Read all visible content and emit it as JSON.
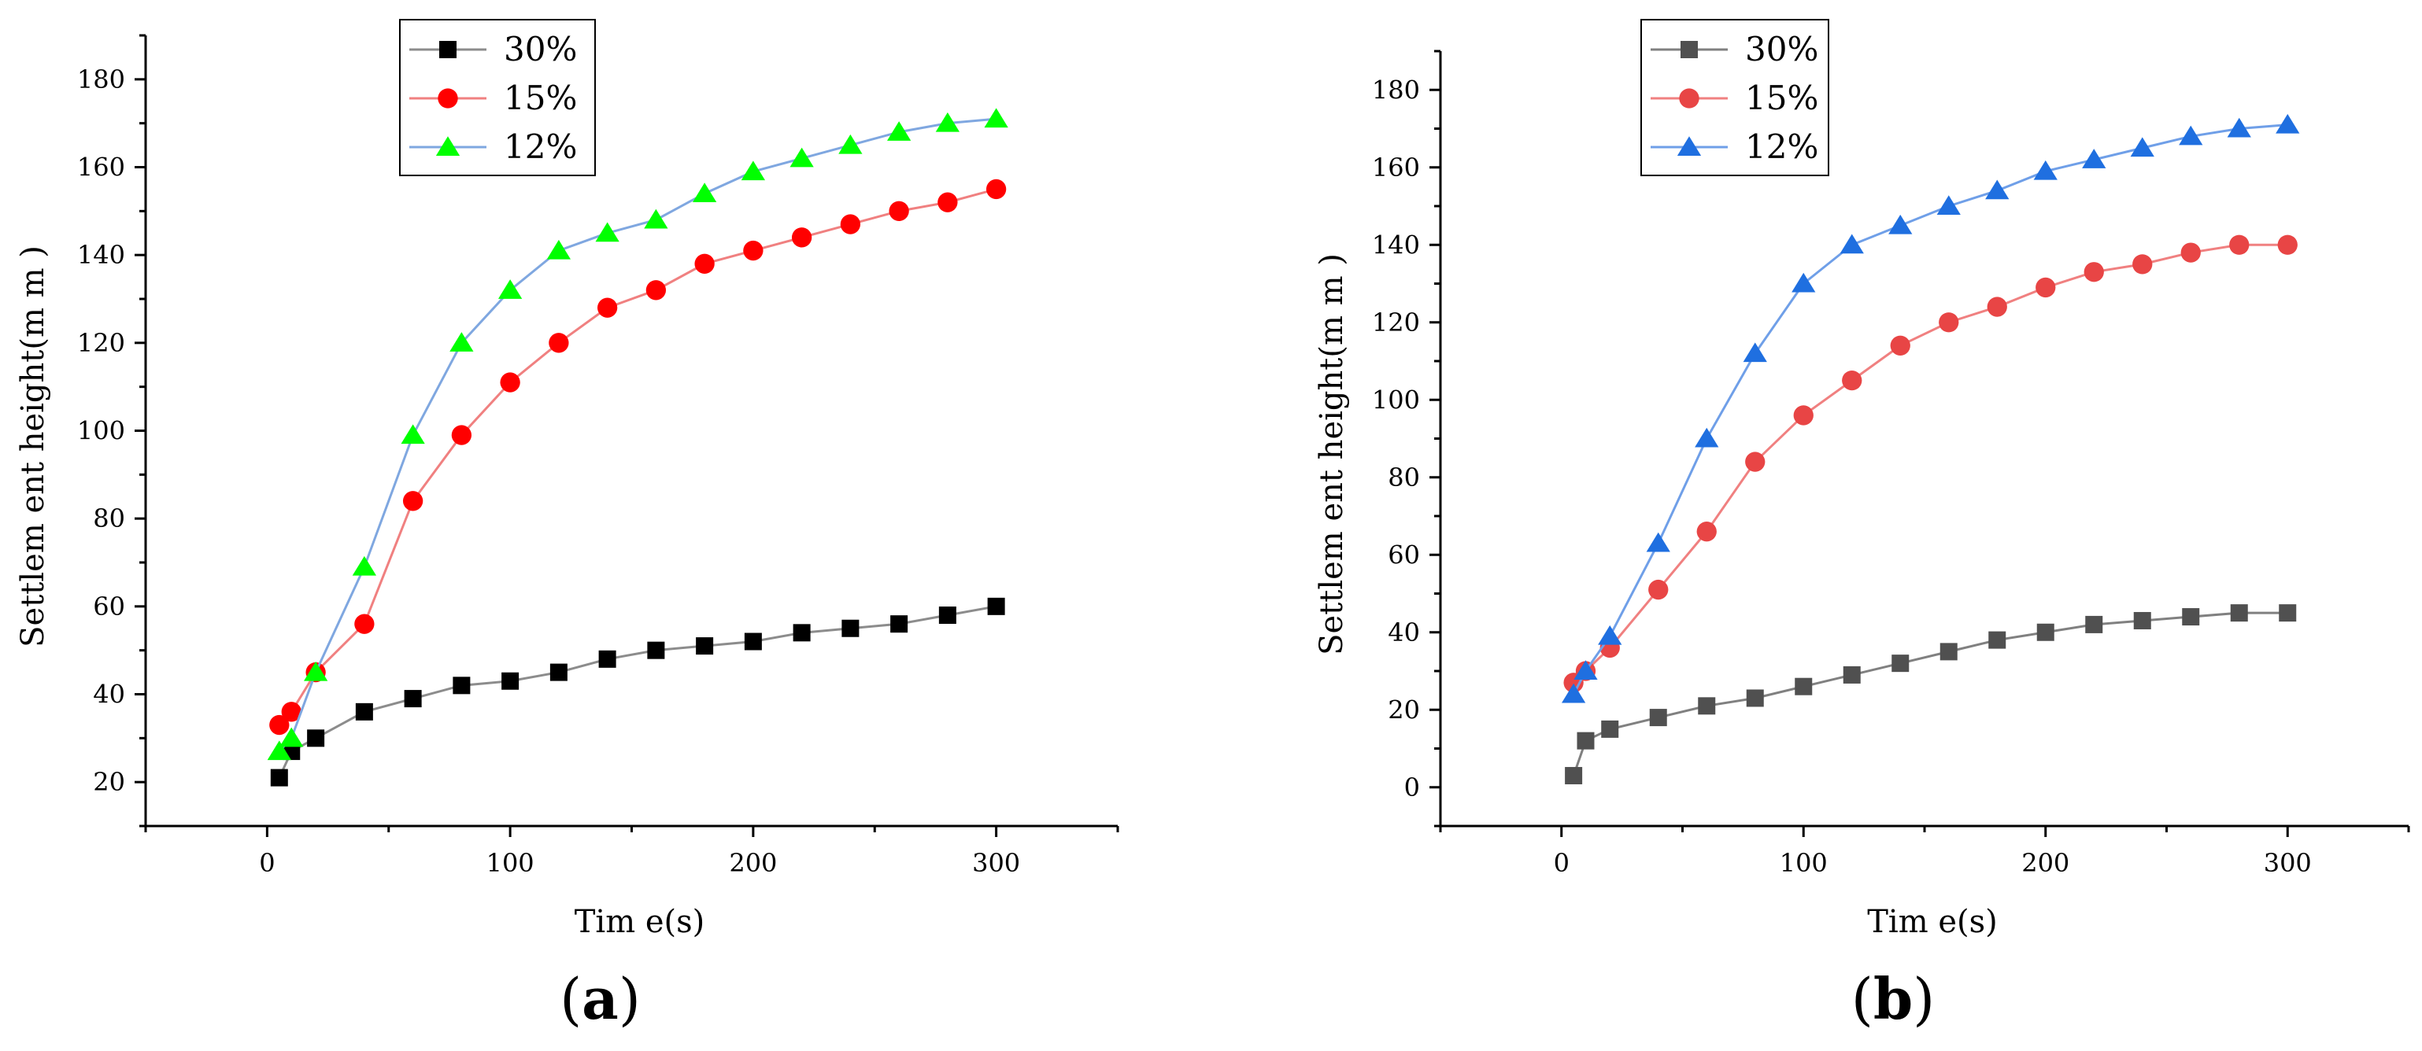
{
  "chart_data": [
    {
      "type": "line",
      "panel_label": "a",
      "xlabel": "Tim e(s)",
      "ylabel": "Settlem ent height(m m )",
      "xlim": [
        -50,
        350
      ],
      "ylim": [
        10,
        190
      ],
      "xticks": [
        0,
        100,
        200,
        300
      ],
      "yticks": [
        20,
        40,
        60,
        80,
        100,
        120,
        140,
        160,
        180
      ],
      "grid": false,
      "legend": "top-center",
      "series": [
        {
          "name": "30%",
          "marker": "square",
          "color": "#000000",
          "line_color": "#8c8c8c",
          "x": [
            5,
            10,
            20,
            40,
            60,
            80,
            100,
            120,
            140,
            160,
            180,
            200,
            220,
            240,
            260,
            280,
            300
          ],
          "y": [
            21,
            27,
            30,
            36,
            39,
            42,
            43,
            45,
            48,
            50,
            51,
            52,
            54,
            55,
            56,
            58,
            60
          ]
        },
        {
          "name": "15%",
          "marker": "circle",
          "color": "#ff0000",
          "line_color": "#f08080",
          "x": [
            5,
            10,
            20,
            40,
            60,
            80,
            100,
            120,
            140,
            160,
            180,
            200,
            220,
            240,
            260,
            280,
            300
          ],
          "y": [
            33,
            36,
            45,
            56,
            84,
            99,
            111,
            120,
            128,
            132,
            138,
            141,
            144,
            147,
            150,
            152,
            155
          ]
        },
        {
          "name": "12%",
          "marker": "triangle",
          "color": "#00ff00",
          "line_color": "#7fa7e0",
          "x": [
            5,
            10,
            20,
            40,
            60,
            80,
            100,
            120,
            140,
            160,
            180,
            200,
            220,
            240,
            260,
            280,
            300
          ],
          "y": [
            27,
            30,
            45,
            69,
            99,
            120,
            132,
            141,
            145,
            148,
            154,
            159,
            162,
            165,
            168,
            170,
            171
          ]
        }
      ]
    },
    {
      "type": "line",
      "panel_label": "b",
      "xlabel": "Tim e(s)",
      "ylabel": "Settlem ent height(m m )",
      "xlim": [
        -50,
        350
      ],
      "ylim": [
        -10,
        190
      ],
      "xticks": [
        0,
        100,
        200,
        300
      ],
      "yticks": [
        0,
        20,
        40,
        60,
        80,
        100,
        120,
        140,
        160,
        180
      ],
      "grid": false,
      "legend": "top-left",
      "series": [
        {
          "name": "30%",
          "marker": "square",
          "color": "#505050",
          "line_color": "#808080",
          "x": [
            5,
            10,
            20,
            40,
            60,
            80,
            100,
            120,
            140,
            160,
            180,
            200,
            220,
            240,
            260,
            280,
            300
          ],
          "y": [
            3,
            12,
            15,
            18,
            21,
            23,
            26,
            29,
            32,
            35,
            38,
            40,
            42,
            43,
            44,
            45,
            45
          ]
        },
        {
          "name": "15%",
          "marker": "circle",
          "color": "#e84545",
          "line_color": "#f08080",
          "x": [
            5,
            10,
            20,
            40,
            60,
            80,
            100,
            120,
            140,
            160,
            180,
            200,
            220,
            240,
            260,
            280,
            300
          ],
          "y": [
            27,
            30,
            36,
            51,
            66,
            84,
            96,
            105,
            114,
            120,
            124,
            129,
            133,
            135,
            138,
            140,
            140
          ]
        },
        {
          "name": "12%",
          "marker": "triangle",
          "color": "#1f6fe0",
          "line_color": "#6f9fe8",
          "x": [
            5,
            10,
            20,
            40,
            60,
            80,
            100,
            120,
            140,
            160,
            180,
            200,
            220,
            240,
            260,
            280,
            300
          ],
          "y": [
            24,
            30,
            39,
            63,
            90,
            112,
            130,
            140,
            145,
            150,
            154,
            159,
            162,
            165,
            168,
            170,
            171
          ]
        }
      ]
    }
  ]
}
